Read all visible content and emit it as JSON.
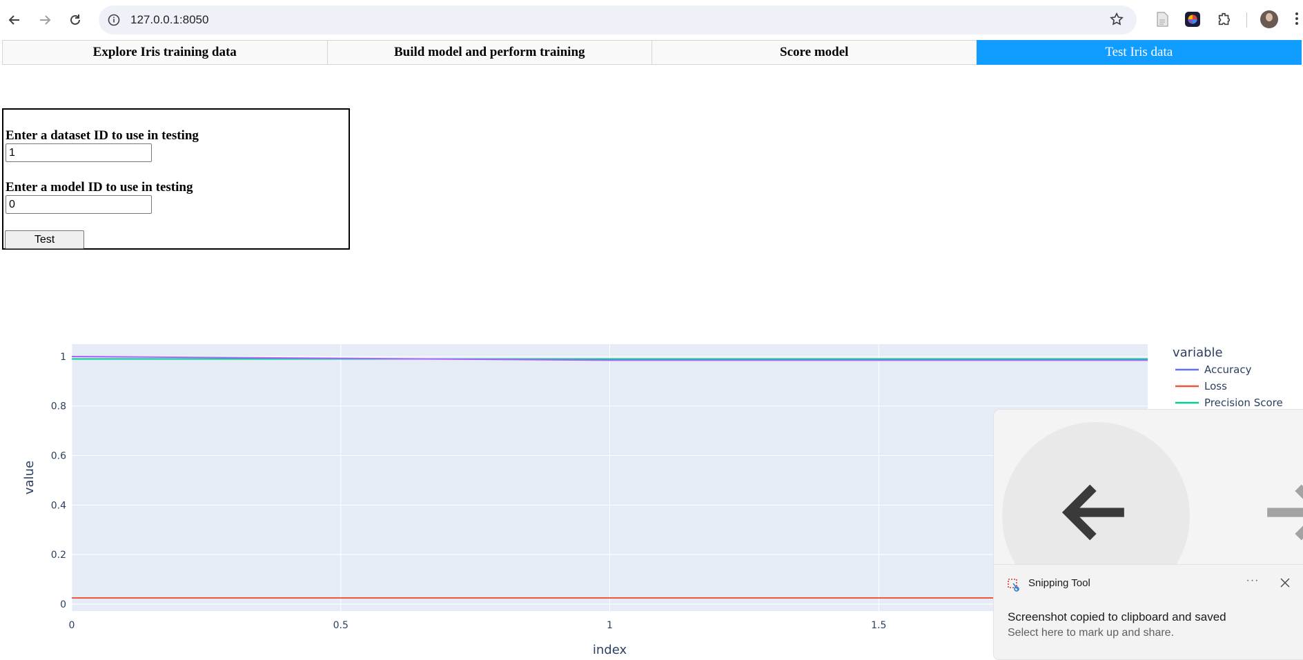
{
  "browser": {
    "url": "127.0.0.1:8050"
  },
  "tabs": [
    {
      "label": "Explore Iris training data",
      "active": false
    },
    {
      "label": "Build model and perform training",
      "active": false
    },
    {
      "label": "Score model",
      "active": false
    },
    {
      "label": "Test Iris data",
      "active": true
    }
  ],
  "form": {
    "dataset_label": "Enter a dataset ID to use in testing",
    "dataset_value": "1",
    "model_label": "Enter a model ID to use in testing",
    "model_value": "0",
    "test_button": "Test"
  },
  "chart_data": {
    "type": "line",
    "xlabel": "index",
    "ylabel": "value",
    "xlim": [
      0,
      2
    ],
    "ylim": [
      0,
      1
    ],
    "x_ticks": [
      "0",
      "0.5",
      "1",
      "1.5"
    ],
    "y_ticks": [
      "0",
      "0.2",
      "0.4",
      "0.6",
      "0.8",
      "1"
    ],
    "legend_title": "variable",
    "legend_position": "right",
    "series": [
      {
        "name": "Accuracy",
        "color": "#636efa",
        "x": [
          0,
          1,
          2
        ],
        "y": [
          0.99,
          0.99,
          0.99
        ]
      },
      {
        "name": "Loss",
        "color": "#ef553b",
        "x": [
          0,
          1,
          2
        ],
        "y": [
          0.025,
          0.025,
          0.025
        ]
      },
      {
        "name": "Precision Score",
        "color": "#00cc96",
        "x": [
          0,
          1,
          2
        ],
        "y": [
          0.99,
          0.99,
          0.99
        ]
      },
      {
        "name": "",
        "color": "#ab63fa",
        "x": [
          0,
          1,
          2
        ],
        "y": [
          1.0,
          0.985,
          0.985
        ]
      }
    ]
  },
  "notification": {
    "app_name": "Snipping Tool",
    "more_label": "···",
    "message": "Screenshot copied to clipboard and saved",
    "sub_message": "Select here to mark up and share."
  }
}
